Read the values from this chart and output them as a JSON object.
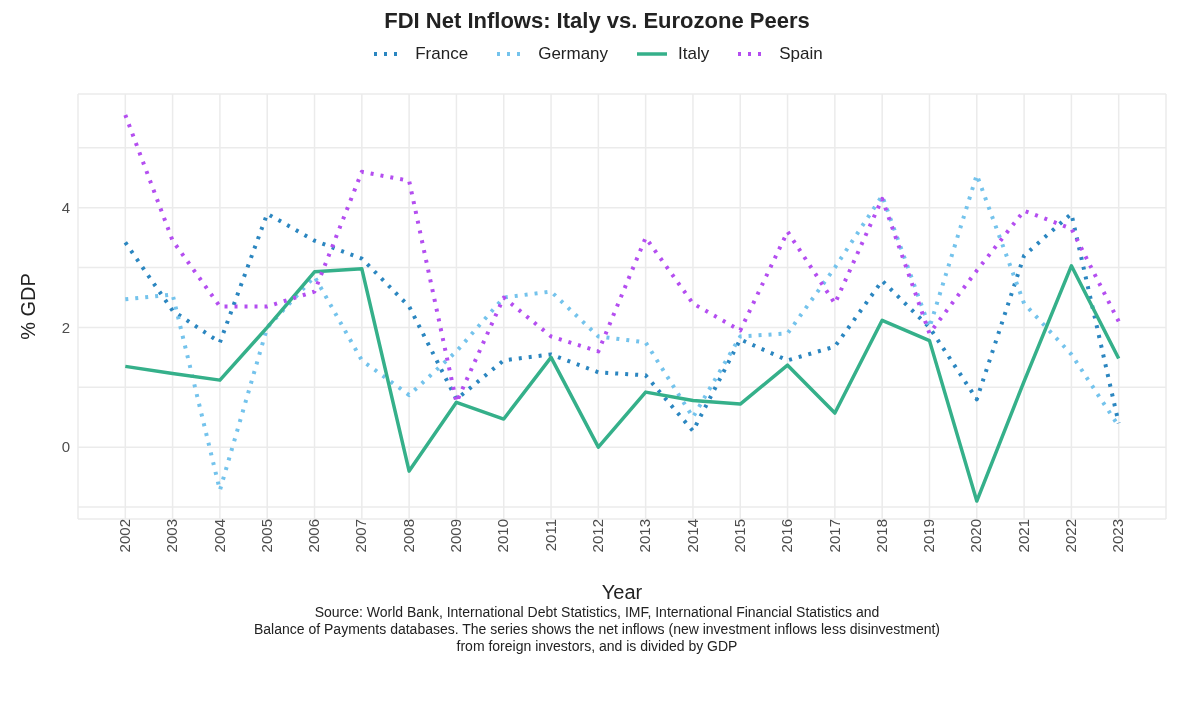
{
  "chart_data": {
    "type": "line",
    "title": "FDI Net Inflows: Italy vs. Eurozone Peers",
    "xlabel": "Year",
    "ylabel": "% GDP",
    "categories": [
      "2002",
      "2003",
      "2004",
      "2005",
      "2006",
      "2007",
      "2008",
      "2009",
      "2010",
      "2011",
      "2012",
      "2013",
      "2014",
      "2015",
      "2016",
      "2017",
      "2018",
      "2019",
      "2020",
      "2021",
      "2022",
      "2023"
    ],
    "series": [
      {
        "name": "France",
        "color": "#2b86c0",
        "line_style": "dotted",
        "values": [
          3.42,
          2.28,
          1.75,
          3.9,
          3.45,
          3.15,
          2.35,
          0.8,
          1.45,
          1.55,
          1.25,
          1.2,
          0.27,
          1.8,
          1.45,
          1.68,
          2.78,
          2.0,
          0.8,
          3.2,
          3.9,
          0.4
        ]
      },
      {
        "name": "Germany",
        "color": "#74c3ec",
        "line_style": "dotted",
        "values": [
          2.47,
          2.55,
          -0.72,
          2.0,
          2.85,
          1.45,
          0.87,
          1.6,
          2.5,
          2.6,
          1.85,
          1.75,
          0.5,
          1.85,
          1.9,
          3.0,
          4.2,
          2.0,
          4.55,
          2.4,
          1.55,
          0.35
        ]
      },
      {
        "name": "Italy",
        "color": "#35b08a",
        "line_style": "solid",
        "values": [
          1.35,
          1.23,
          1.12,
          2.0,
          2.93,
          2.98,
          -0.4,
          0.75,
          0.47,
          1.5,
          0.0,
          0.92,
          0.78,
          0.72,
          1.37,
          0.57,
          2.12,
          1.78,
          -0.9,
          1.1,
          3.03,
          1.48
        ]
      },
      {
        "name": "Spain",
        "color": "#b44ef0",
        "line_style": "dotted",
        "values": [
          5.55,
          3.45,
          2.35,
          2.35,
          2.6,
          4.6,
          4.45,
          0.75,
          2.5,
          1.85,
          1.6,
          3.5,
          2.4,
          1.95,
          3.6,
          2.4,
          4.15,
          1.9,
          2.95,
          3.95,
          3.65,
          2.1
        ]
      }
    ],
    "ylim": [
      -1.2,
      5.9
    ],
    "yticks": [
      {
        "value": -1,
        "label": null
      },
      0,
      {
        "value": 1,
        "label": null
      },
      2,
      {
        "value": 3,
        "label": null
      },
      4,
      {
        "value": 5,
        "label": null
      }
    ],
    "grid": true,
    "legend": "top",
    "annotations": [
      "Source: World Bank, International Debt Statistics, IMF, International Financial Statistics and\nBalance of Payments databases. The series shows the net inflows (new investment inflows less disinvestment)\nfrom foreign investors, and is divided by GDP"
    ]
  }
}
